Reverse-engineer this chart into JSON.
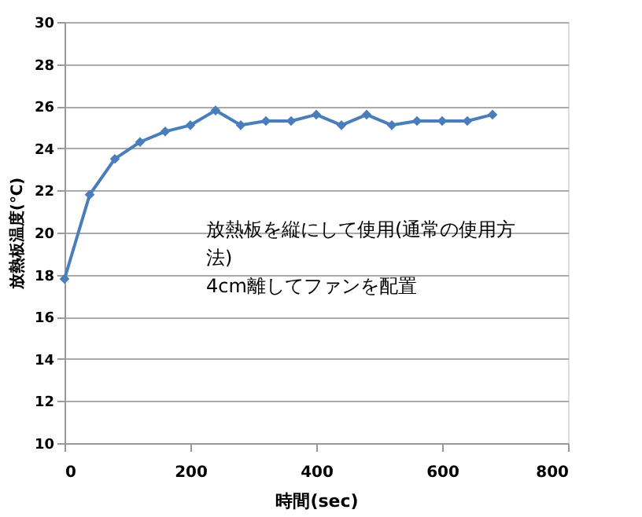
{
  "chart_data": {
    "type": "line",
    "xlabel": "時間(sec)",
    "ylabel": "放熱板温度(℃)",
    "x": [
      0,
      40,
      80,
      120,
      160,
      200,
      240,
      280,
      320,
      360,
      400,
      440,
      480,
      520,
      560,
      600,
      640,
      680
    ],
    "series": [
      {
        "color": "#4a7ebb",
        "values": [
          17.8,
          21.8,
          23.5,
          24.3,
          24.8,
          25.1,
          25.8,
          25.1,
          25.3,
          25.3,
          25.6,
          25.1,
          25.6,
          25.1,
          25.3,
          25.3,
          25.3,
          25.6
        ]
      }
    ],
    "xlim": [
      0,
      800
    ],
    "xticks": [
      0,
      200,
      400,
      600,
      800
    ],
    "ylim": [
      10,
      30
    ],
    "yticks": [
      10,
      12,
      14,
      16,
      18,
      20,
      22,
      24,
      26,
      28,
      30
    ],
    "grid": "y",
    "marker": "diamond",
    "line_style": "solid",
    "annotations": [
      "放熱板を縦にして使用(通常の使用方法)",
      "4cm離してファンを配置"
    ]
  }
}
